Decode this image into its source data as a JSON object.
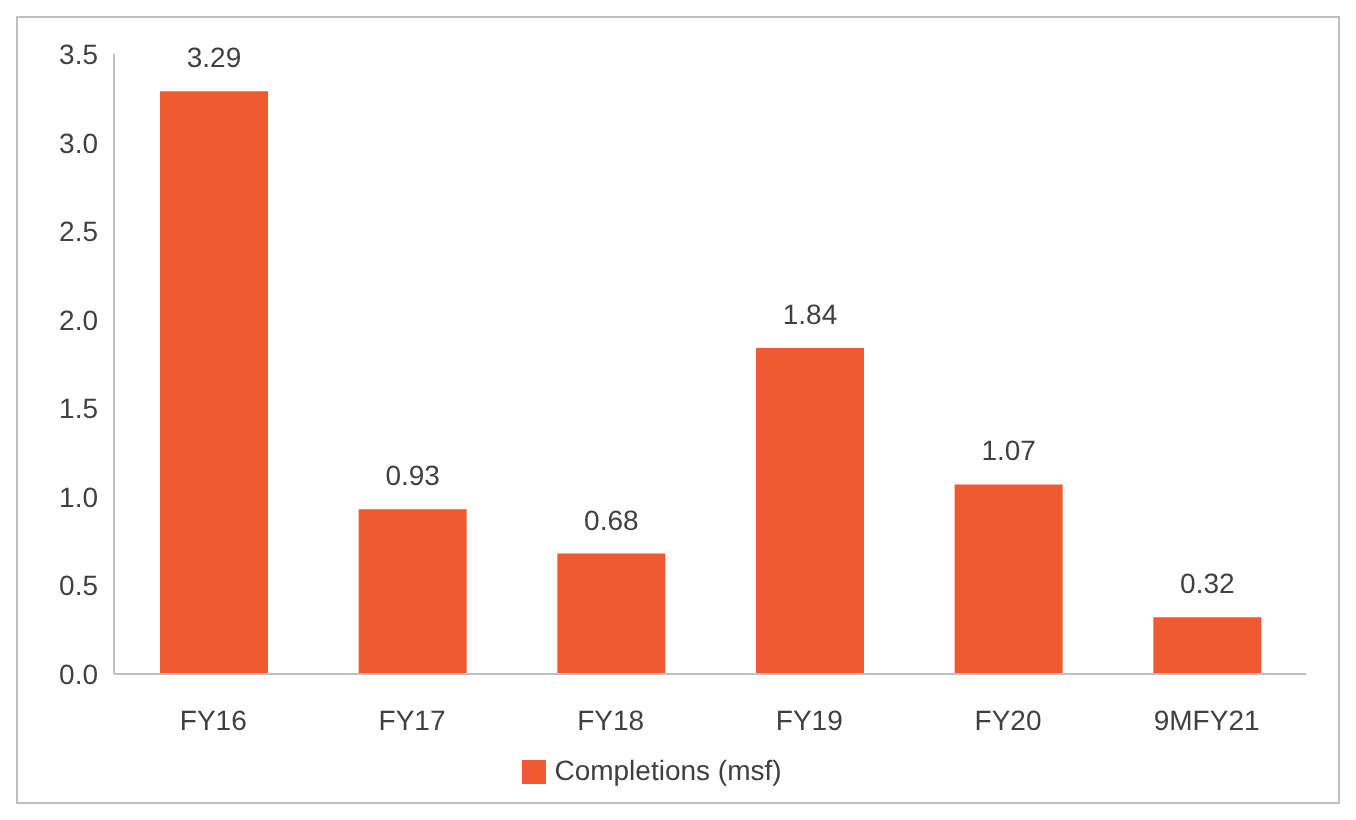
{
  "chart_data": {
    "type": "bar",
    "categories": [
      "FY16",
      "FY17",
      "FY18",
      "FY19",
      "FY20",
      "9MFY21"
    ],
    "series": [
      {
        "name": "Completions (msf)",
        "color": "#f05a30",
        "values": [
          3.29,
          0.93,
          0.68,
          1.84,
          1.07,
          0.32
        ]
      }
    ],
    "ylim": [
      0,
      3.5
    ],
    "yticks": [
      {
        "value": 0,
        "label": "0.0"
      },
      {
        "value": 0.5,
        "label": "0.5"
      },
      {
        "value": 1,
        "label": "1.0"
      },
      {
        "value": 1.5,
        "label": "1.5"
      },
      {
        "value": 2,
        "label": "2.0"
      },
      {
        "value": 2.5,
        "label": "2.5"
      },
      {
        "value": 3,
        "label": "3.0"
      },
      {
        "value": 3.5,
        "label": "3.5"
      }
    ],
    "data_labels": true,
    "grid": false,
    "legend": "bottom"
  }
}
